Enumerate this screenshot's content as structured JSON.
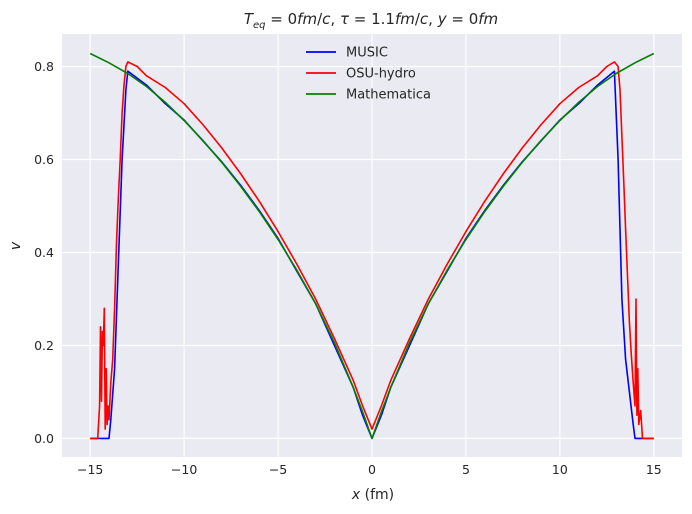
{
  "chart_data": {
    "type": "line",
    "title": "T_eq = 0fm/c, τ = 1.1fm/c, y = 0fm",
    "xlabel": "x (fm)",
    "ylabel": "v",
    "xlim": [
      -16.5,
      16.5
    ],
    "ylim": [
      -0.04,
      0.87
    ],
    "xticks": [
      -15,
      -10,
      -5,
      0,
      5,
      10,
      15
    ],
    "xtick_labels": [
      "−15",
      "−10",
      "−5",
      "0",
      "5",
      "10",
      "15"
    ],
    "yticks": [
      0.0,
      0.2,
      0.4,
      0.6,
      0.8
    ],
    "ytick_labels": [
      "0.0",
      "0.2",
      "0.4",
      "0.6",
      "0.8"
    ],
    "grid": true,
    "legend_position": "top-center",
    "background": "#eaeaf2",
    "series": [
      {
        "name": "MUSIC",
        "color": "#0000ff",
        "x": [
          -15,
          -14,
          -13.9,
          -13.7,
          -13.5,
          -13.3,
          -13.1,
          -13,
          -12,
          -11,
          -10,
          -9,
          -8,
          -7,
          -6,
          -5,
          -4,
          -3,
          -2,
          -1,
          -0.5,
          0,
          0.5,
          1,
          2,
          3,
          4,
          5,
          6,
          7,
          8,
          9,
          10,
          11,
          12,
          12.9,
          13.1,
          13.3,
          13.5,
          13.7,
          13.9,
          14,
          15
        ],
        "y": [
          0,
          0,
          0.04,
          0.15,
          0.38,
          0.6,
          0.75,
          0.79,
          0.76,
          0.72,
          0.685,
          0.64,
          0.595,
          0.545,
          0.49,
          0.43,
          0.36,
          0.29,
          0.2,
          0.11,
          0.05,
          0.0,
          0.05,
          0.11,
          0.2,
          0.29,
          0.36,
          0.43,
          0.49,
          0.545,
          0.595,
          0.64,
          0.685,
          0.72,
          0.76,
          0.79,
          0.6,
          0.3,
          0.17,
          0.1,
          0.03,
          0,
          0
        ]
      },
      {
        "name": "OSU-hydro",
        "color": "#ff0000",
        "x": [
          -15,
          -14.6,
          -14.5,
          -14.45,
          -14.4,
          -14.35,
          -14.3,
          -14.25,
          -14.2,
          -14.15,
          -14.1,
          -14.05,
          -14.0,
          -13.9,
          -13.8,
          -13.7,
          -13.6,
          -13.5,
          -13.4,
          -13.3,
          -13.2,
          -13.1,
          -13,
          -12.5,
          -12,
          -11,
          -10,
          -9,
          -8,
          -7,
          -6,
          -5,
          -4,
          -3,
          -2,
          -1,
          -0.5,
          0,
          0.5,
          1,
          2,
          3,
          4,
          5,
          6,
          7,
          8,
          9,
          10,
          11,
          12,
          12.5,
          12.9,
          13.1,
          13.2,
          13.3,
          13.4,
          13.5,
          13.6,
          13.7,
          13.8,
          13.9,
          14.0,
          14.05,
          14.1,
          14.15,
          14.2,
          14.3,
          14.4,
          14.6,
          15
        ],
        "y": [
          0,
          0,
          0.07,
          0.24,
          0.08,
          0.23,
          0.2,
          0.28,
          0.02,
          0.15,
          0.03,
          0.07,
          0.04,
          0.12,
          0.17,
          0.28,
          0.42,
          0.52,
          0.6,
          0.7,
          0.76,
          0.8,
          0.81,
          0.8,
          0.78,
          0.755,
          0.72,
          0.675,
          0.625,
          0.57,
          0.51,
          0.445,
          0.375,
          0.3,
          0.215,
          0.125,
          0.07,
          0.02,
          0.07,
          0.125,
          0.215,
          0.3,
          0.375,
          0.445,
          0.51,
          0.57,
          0.625,
          0.675,
          0.72,
          0.755,
          0.78,
          0.8,
          0.81,
          0.8,
          0.75,
          0.65,
          0.55,
          0.45,
          0.35,
          0.25,
          0.18,
          0.12,
          0.07,
          0.3,
          0.05,
          0.15,
          0.03,
          0.06,
          0.0,
          0,
          0
        ]
      },
      {
        "name": "Mathematica",
        "color": "#008000",
        "x": [
          -15,
          -14,
          -13,
          -12,
          -11,
          -10,
          -9,
          -8,
          -7,
          -6,
          -5,
          -4,
          -3,
          -2,
          -1,
          -0.5,
          0,
          0.5,
          1,
          2,
          3,
          4,
          5,
          6,
          7,
          8,
          9,
          10,
          11,
          12,
          13,
          14,
          15
        ],
        "y": [
          0.828,
          0.808,
          0.785,
          0.757,
          0.723,
          0.684,
          0.641,
          0.594,
          0.543,
          0.488,
          0.428,
          0.362,
          0.29,
          0.206,
          0.11,
          0.057,
          0.0,
          0.057,
          0.11,
          0.206,
          0.29,
          0.362,
          0.428,
          0.488,
          0.543,
          0.594,
          0.641,
          0.684,
          0.723,
          0.757,
          0.785,
          0.808,
          0.828
        ]
      }
    ]
  }
}
